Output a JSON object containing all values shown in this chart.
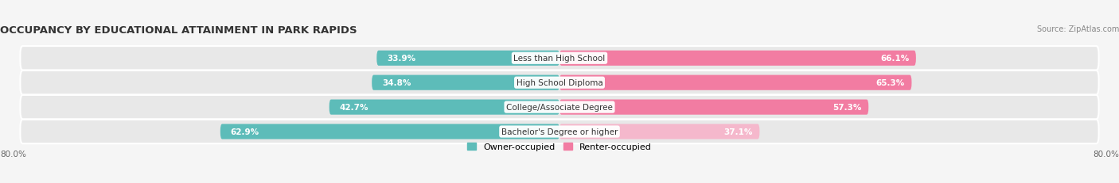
{
  "title": "OCCUPANCY BY EDUCATIONAL ATTAINMENT IN PARK RAPIDS",
  "source": "Source: ZipAtlas.com",
  "categories": [
    "Less than High School",
    "High School Diploma",
    "College/Associate Degree",
    "Bachelor's Degree or higher"
  ],
  "owner_pct": [
    33.9,
    34.8,
    42.7,
    62.9
  ],
  "renter_pct": [
    66.1,
    65.3,
    57.3,
    37.1
  ],
  "owner_color": "#5dbcb9",
  "renter_color": "#f27ca2",
  "renter_color_light": "#f5b8cc",
  "axis_max": 80.0,
  "legend_owner": "Owner-occupied",
  "legend_renter": "Renter-occupied",
  "axis_label_left": "80.0%",
  "axis_label_right": "80.0%",
  "bar_height": 0.62,
  "row_bg_color": "#e8e8e8",
  "fig_bg_color": "#f5f5f5",
  "title_color": "#333333",
  "source_color": "#888888",
  "pct_text_white": "#ffffff",
  "pct_text_dark": "#555555",
  "label_color": "#333333"
}
